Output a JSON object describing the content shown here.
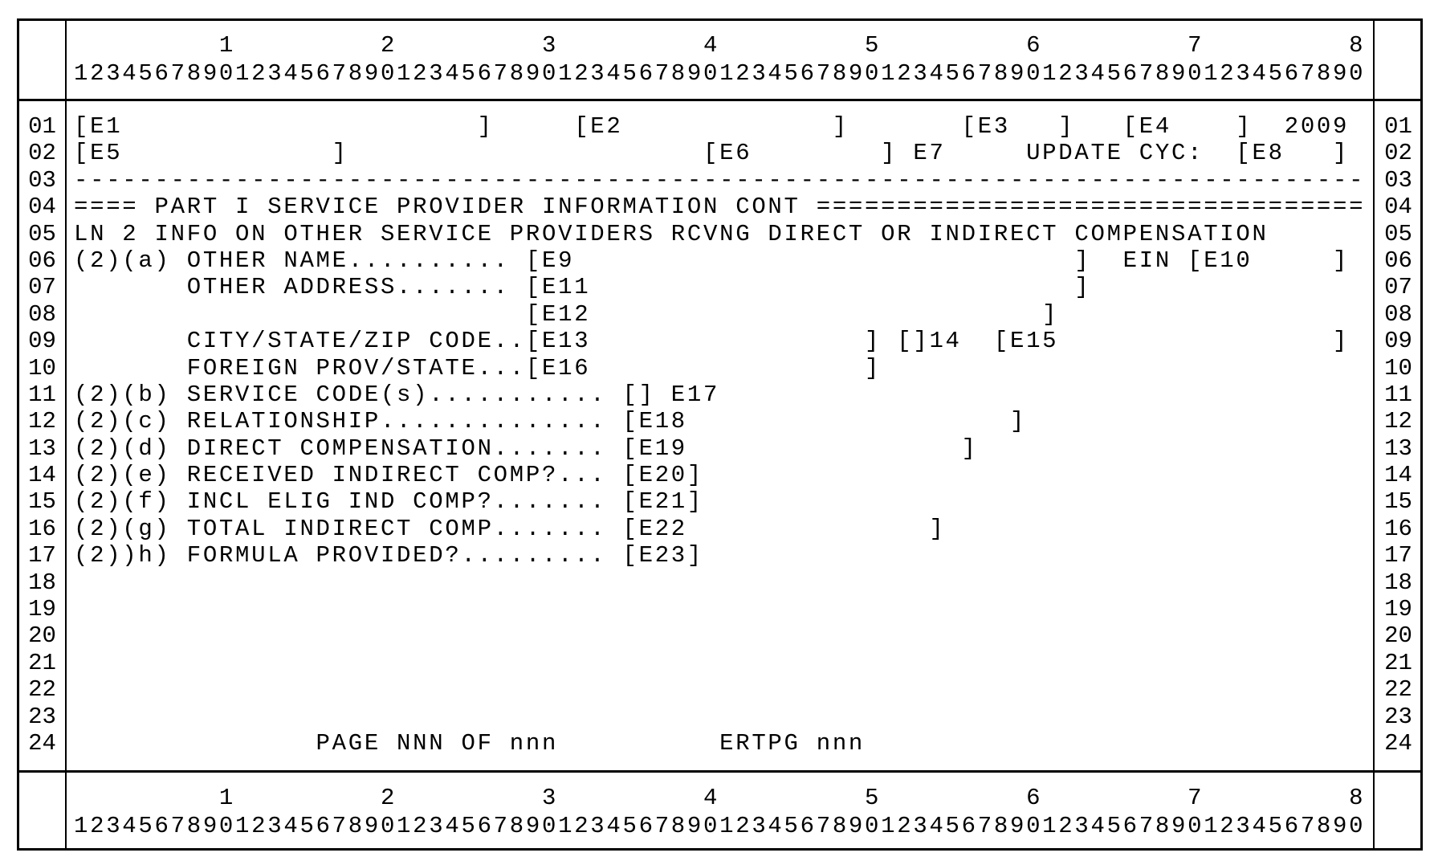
{
  "ruler": {
    "tens": "         1         2         3         4         5         6         7         8",
    "units": "12345678901234567890123456789012345678901234567890123456789012345678901234567890"
  },
  "line_numbers": [
    "01",
    "02",
    "03",
    "04",
    "05",
    "06",
    "07",
    "08",
    "09",
    "10",
    "11",
    "12",
    "13",
    "14",
    "15",
    "16",
    "17",
    "18",
    "19",
    "20",
    "21",
    "22",
    "23",
    "24"
  ],
  "rows": [
    "[E1                      ]     [E2             ]       [E3   ]   [E4    ]  2009",
    "[E5             ]                      [E6        ] E7     UPDATE CYC:  [E8   ]",
    "--------------------------------------------------------------------------------",
    "==== PART I SERVICE PROVIDER INFORMATION CONT ==================================",
    "LN 2 INFO ON OTHER SERVICE PROVIDERS RCVNG DIRECT OR INDIRECT COMPENSATION",
    "(2)(a) OTHER NAME.......... [E9                               ]  EIN [E10     ]",
    "       OTHER ADDRESS....... [E11                              ]",
    "                            [E12                            ]",
    "       CITY/STATE/ZIP CODE..[E13                 ] []14  [E15                 ]",
    "       FOREIGN PROV/STATE...[E16                 ]",
    "(2)(b) SERVICE CODE(s)........... [] E17",
    "(2)(c) RELATIONSHIP.............. [E18                    ]",
    "(2)(d) DIRECT COMPENSATION....... [E19                 ]",
    "(2)(e) RECEIVED INDIRECT COMP?... [E20]",
    "(2)(f) INCL ELIG IND COMP?....... [E21]",
    "(2)(g) TOTAL INDIRECT COMP....... [E22               ]",
    "(2))h) FORMULA PROVIDED?......... [E23]",
    "",
    "",
    "",
    "",
    "",
    "",
    "               PAGE NNN OF nnn          ERTPG nnn"
  ]
}
